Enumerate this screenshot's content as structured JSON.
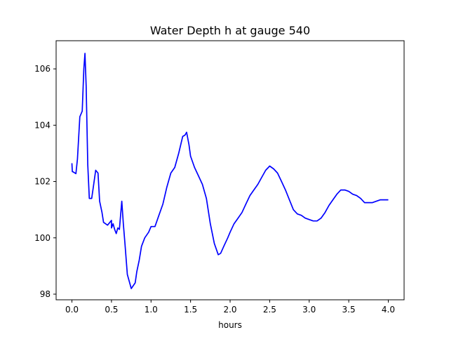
{
  "chart_data": {
    "type": "line",
    "title": "Water Depth h at gauge 540",
    "xlabel": "hours",
    "ylabel": "",
    "xlim": [
      -0.2,
      4.2
    ],
    "ylim": [
      97.8,
      107.0
    ],
    "xticks": [
      0.0,
      0.5,
      1.0,
      1.5,
      2.0,
      2.5,
      3.0,
      3.5,
      4.0
    ],
    "xtick_labels": [
      "0.0",
      "0.5",
      "1.0",
      "1.5",
      "2.0",
      "2.5",
      "3.0",
      "3.5",
      "4.0"
    ],
    "yticks": [
      98,
      100,
      102,
      104,
      106
    ],
    "ytick_labels": [
      "98",
      "100",
      "102",
      "104",
      "106"
    ],
    "grid": false,
    "series": [
      {
        "color": "#0000ff",
        "x": [
          0.0,
          0.005,
          0.01,
          0.05,
          0.07,
          0.1,
          0.13,
          0.15,
          0.165,
          0.18,
          0.2,
          0.22,
          0.25,
          0.27,
          0.3,
          0.33,
          0.35,
          0.38,
          0.4,
          0.45,
          0.5,
          0.5,
          0.52,
          0.54,
          0.56,
          0.58,
          0.6,
          0.63,
          0.65,
          0.67,
          0.7,
          0.75,
          0.8,
          0.82,
          0.85,
          0.88,
          0.92,
          0.97,
          1.0,
          1.05,
          1.1,
          1.15,
          1.2,
          1.25,
          1.3,
          1.35,
          1.4,
          1.43,
          1.45,
          1.48,
          1.5,
          1.55,
          1.6,
          1.65,
          1.7,
          1.75,
          1.8,
          1.85,
          1.88,
          1.92,
          1.97,
          2.0,
          2.05,
          2.1,
          2.15,
          2.2,
          2.25,
          2.3,
          2.35,
          2.4,
          2.45,
          2.5,
          2.55,
          2.6,
          2.65,
          2.7,
          2.75,
          2.8,
          2.85,
          2.9,
          2.95,
          3.0,
          3.05,
          3.1,
          3.15,
          3.2,
          3.25,
          3.3,
          3.35,
          3.4,
          3.45,
          3.5,
          3.55,
          3.6,
          3.65,
          3.7,
          3.75,
          3.8,
          3.85,
          3.9,
          3.95,
          4.0
        ],
        "values": [
          102.65,
          102.35,
          102.35,
          102.28,
          102.8,
          104.3,
          104.5,
          106.0,
          106.55,
          105.4,
          102.6,
          101.4,
          101.4,
          101.8,
          102.4,
          102.3,
          101.3,
          100.9,
          100.55,
          100.45,
          100.62,
          100.35,
          100.5,
          100.3,
          100.15,
          100.35,
          100.3,
          101.3,
          100.5,
          99.8,
          98.7,
          98.2,
          98.4,
          98.8,
          99.2,
          99.7,
          100.0,
          100.2,
          100.4,
          100.4,
          100.8,
          101.2,
          101.8,
          102.3,
          102.5,
          103.0,
          103.6,
          103.65,
          103.75,
          103.3,
          102.9,
          102.5,
          102.2,
          101.9,
          101.4,
          100.5,
          99.8,
          99.4,
          99.45,
          99.7,
          100.0,
          100.2,
          100.5,
          100.7,
          100.9,
          101.2,
          101.5,
          101.7,
          101.9,
          102.15,
          102.4,
          102.55,
          102.45,
          102.3,
          102.0,
          101.7,
          101.35,
          101.0,
          100.85,
          100.8,
          100.7,
          100.65,
          100.6,
          100.6,
          100.7,
          100.9,
          101.15,
          101.35,
          101.55,
          101.7,
          101.7,
          101.65,
          101.55,
          101.5,
          101.4,
          101.25,
          101.25,
          101.25,
          101.3,
          101.35,
          101.35,
          101.35
        ]
      }
    ]
  }
}
